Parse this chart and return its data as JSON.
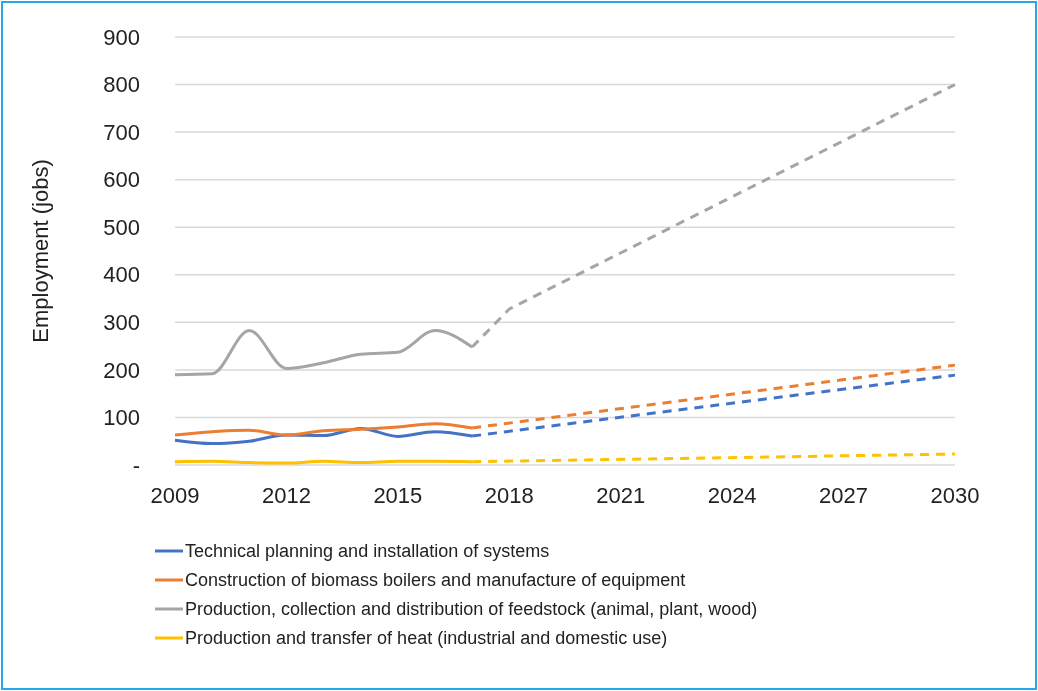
{
  "chart_data": {
    "type": "line",
    "ylabel": "Employment (jobs)",
    "xlim": [
      2009,
      2030
    ],
    "xticks": [
      2009,
      2012,
      2015,
      2018,
      2021,
      2024,
      2027,
      2030
    ],
    "ylim": [
      0,
      900
    ],
    "yticks": [
      {
        "value": 0,
        "label": "-"
      },
      100,
      200,
      300,
      400,
      500,
      600,
      700,
      800,
      900
    ],
    "grid": "y",
    "legend": "bottom",
    "series": [
      {
        "name": "Technical planning and installation of systems",
        "color": "#4472c4",
        "x": [
          2009,
          2010,
          2011,
          2012,
          2013,
          2014,
          2015,
          2016,
          2017
        ],
        "values": [
          52,
          45,
          50,
          63,
          62,
          77,
          60,
          70,
          61
        ]
      },
      {
        "name": "Construction of biomass boilers and manufacture of equipment",
        "color": "#ed7d31",
        "x": [
          2009,
          2010,
          2011,
          2012,
          2013,
          2014,
          2015,
          2016,
          2017
        ],
        "values": [
          63,
          70,
          73,
          63,
          72,
          75,
          80,
          87,
          78
        ]
      },
      {
        "name": "Production, collection and distribution of feedstock (animal, plant, wood)",
        "color": "#a5a5a5",
        "x": [
          2009,
          2010,
          2011,
          2012,
          2013,
          2014,
          2015,
          2016,
          2017
        ],
        "values": [
          190,
          192,
          283,
          203,
          215,
          233,
          237,
          283,
          248
        ]
      },
      {
        "name": "Production and transfer of heat (industrial and domestic use)",
        "color": "#ffc000",
        "x": [
          2009,
          2010,
          2011,
          2012,
          2013,
          2014,
          2015,
          2016,
          2017
        ],
        "values": [
          7,
          8,
          5,
          4,
          8,
          5,
          8,
          8,
          7
        ]
      },
      {
        "color": "#4472c4",
        "line_style": "dashed",
        "x": [
          2017,
          2030
        ],
        "values": [
          61,
          189
        ]
      },
      {
        "color": "#ed7d31",
        "line_style": "dashed",
        "x": [
          2017,
          2030
        ],
        "values": [
          78,
          210
        ]
      },
      {
        "color": "#a5a5a5",
        "line_style": "dashed",
        "x": [
          2017,
          2018,
          2030
        ],
        "values": [
          248,
          328,
          800
        ]
      },
      {
        "color": "#ffc000",
        "line_style": "dashed",
        "x": [
          2017,
          2030
        ],
        "values": [
          7,
          23
        ]
      }
    ]
  }
}
